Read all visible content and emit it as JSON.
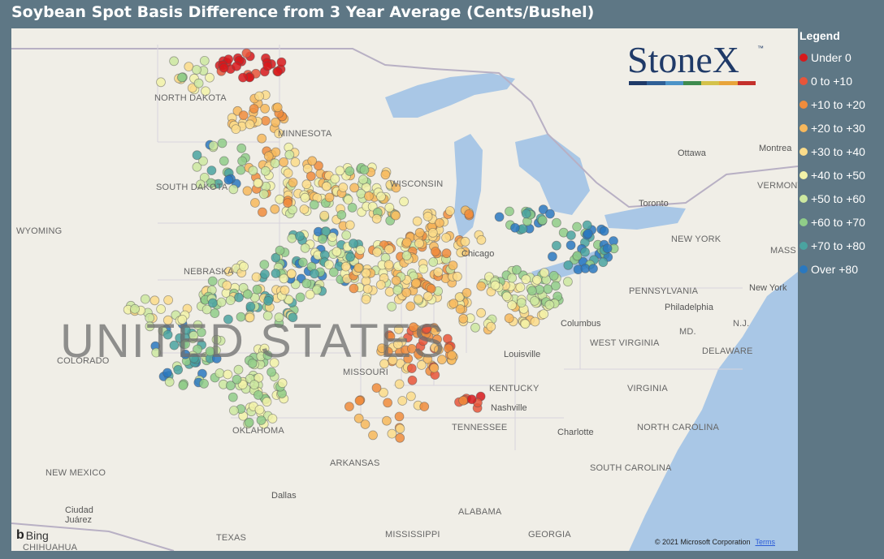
{
  "title": "Soybean Spot Basis Difference from 3 Year Average (Cents/Bushel)",
  "legend": {
    "title": "Legend",
    "items": [
      {
        "label": "Under 0",
        "color": "#d7191c"
      },
      {
        "label": "0 to +10",
        "color": "#e8553a"
      },
      {
        "label": "+10 to +20",
        "color": "#f08c3c"
      },
      {
        "label": "+20 to +30",
        "color": "#f7b85c"
      },
      {
        "label": "+30 to +40",
        "color": "#fbdc8a"
      },
      {
        "label": "+40 to +50",
        "color": "#f2f2a8"
      },
      {
        "label": "+50 to +60",
        "color": "#cde8a0"
      },
      {
        "label": "+60 to +70",
        "color": "#90cd88"
      },
      {
        "label": "+70 to +80",
        "color": "#4aa3a0"
      },
      {
        "label": "Over +80",
        "color": "#2a78bf"
      }
    ]
  },
  "logo": {
    "text": "StoneX",
    "tm": "™",
    "bar_colors": [
      "#1f3a68",
      "#2f5f96",
      "#4c93c8",
      "#3e8b4e",
      "#d4c24a",
      "#e8a43a",
      "#c4302b"
    ]
  },
  "map": {
    "watermark": "UNITED STATES",
    "bing_label": "Bing",
    "copyright": "© 2021 Microsoft Corporation",
    "terms": "Terms",
    "places": [
      {
        "name": "NORTH DAKOTA",
        "kind": "state"
      },
      {
        "name": "MINNESOTA",
        "kind": "state"
      },
      {
        "name": "SOUTH DAKOTA",
        "kind": "state"
      },
      {
        "name": "WISCONSIN",
        "kind": "state"
      },
      {
        "name": "WYOMING",
        "kind": "state"
      },
      {
        "name": "NEBRASKA",
        "kind": "state"
      },
      {
        "name": "COLORADO",
        "kind": "state"
      },
      {
        "name": "MISSOURI",
        "kind": "state"
      },
      {
        "name": "KENTUCKY",
        "kind": "state"
      },
      {
        "name": "TENNESSEE",
        "kind": "state"
      },
      {
        "name": "OKLAHOMA",
        "kind": "state"
      },
      {
        "name": "ARKANSAS",
        "kind": "state"
      },
      {
        "name": "NEW MEXICO",
        "kind": "state"
      },
      {
        "name": "TEXAS",
        "kind": "state"
      },
      {
        "name": "MISSISSIPPI",
        "kind": "state"
      },
      {
        "name": "ALABAMA",
        "kind": "state"
      },
      {
        "name": "GEORGIA",
        "kind": "state"
      },
      {
        "name": "SOUTH CAROLINA",
        "kind": "state"
      },
      {
        "name": "NORTH CAROLINA",
        "kind": "state"
      },
      {
        "name": "VIRGINIA",
        "kind": "state"
      },
      {
        "name": "WEST VIRGINIA",
        "kind": "state"
      },
      {
        "name": "PENNSYLVANIA",
        "kind": "state"
      },
      {
        "name": "NEW YORK",
        "kind": "state"
      },
      {
        "name": "VERMONT",
        "kind": "state"
      },
      {
        "name": "MD.",
        "kind": "state"
      },
      {
        "name": "DELAWARE",
        "kind": "state"
      },
      {
        "name": "N.J.",
        "kind": "state"
      },
      {
        "name": "MASS",
        "kind": "state"
      },
      {
        "name": "Ottawa",
        "kind": "city"
      },
      {
        "name": "Montrea",
        "kind": "city"
      },
      {
        "name": "Toronto",
        "kind": "city"
      },
      {
        "name": "Chicago",
        "kind": "city"
      },
      {
        "name": "Columbus",
        "kind": "city"
      },
      {
        "name": "Louisville",
        "kind": "city"
      },
      {
        "name": "Nashville",
        "kind": "city"
      },
      {
        "name": "Charlotte",
        "kind": "city"
      },
      {
        "name": "Philadelphia",
        "kind": "city"
      },
      {
        "name": "New York",
        "kind": "city"
      },
      {
        "name": "Dallas",
        "kind": "city"
      },
      {
        "name": "Ciudad Juárez",
        "kind": "city"
      },
      {
        "name": "CHIHUAHUA",
        "kind": "state"
      }
    ]
  }
}
